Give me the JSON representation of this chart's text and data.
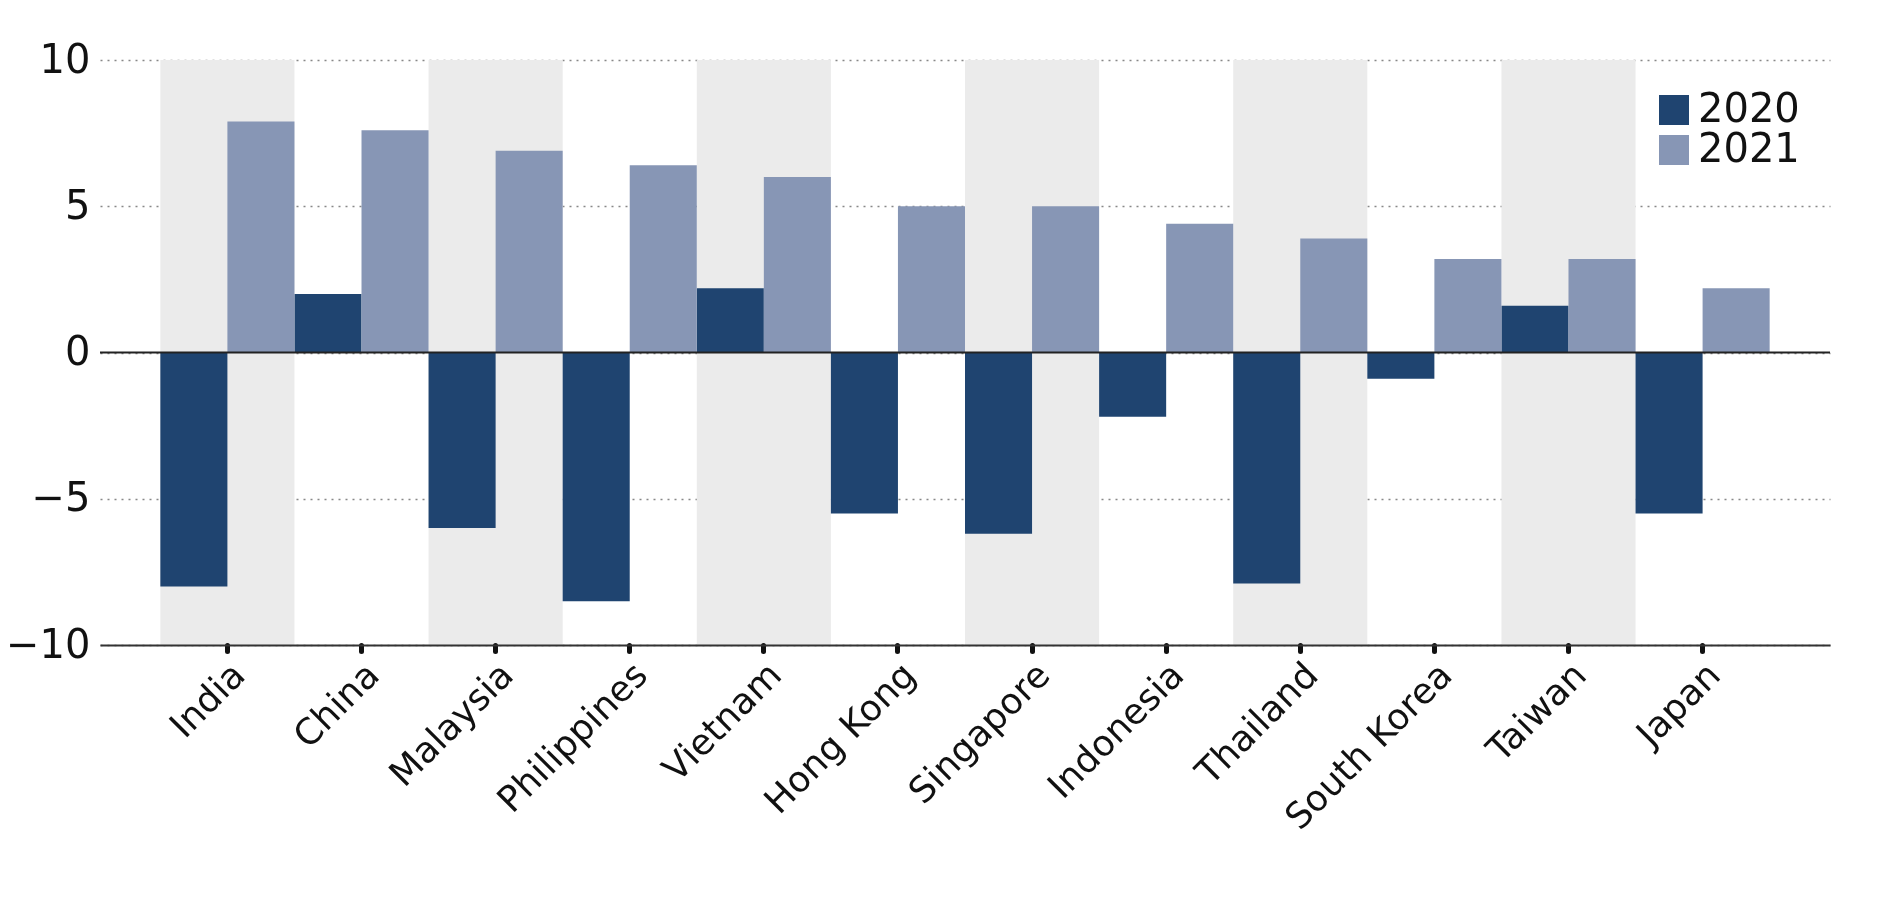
{
  "chart_data": {
    "type": "bar",
    "categories": [
      "India",
      "China",
      "Malaysia",
      "Philippines",
      "Vietnam",
      "Hong Kong",
      "Singapore",
      "Indonesia",
      "Thailand",
      "South Korea",
      "Taiwan",
      "Japan"
    ],
    "series": [
      {
        "name": "2020",
        "color": "#1f4470",
        "values": [
          -8.0,
          2.0,
          -6.0,
          -8.5,
          2.2,
          -5.5,
          -6.2,
          -2.2,
          -7.9,
          -0.9,
          1.6,
          -5.5
        ]
      },
      {
        "name": "2021",
        "color": "#8796b5",
        "values": [
          7.9,
          7.6,
          6.9,
          6.4,
          6.0,
          5.0,
          5.0,
          4.4,
          3.9,
          3.2,
          3.2,
          2.2
        ]
      }
    ],
    "ylim": [
      -10,
      10
    ],
    "yticks": [
      -10,
      -5,
      0,
      5,
      10
    ],
    "grid": "y",
    "legend": "top right",
    "ref_lines": [
      {
        "axis": "y",
        "value": 0,
        "color": "#222222"
      }
    ],
    "bands": [
      {
        "axis": "x",
        "from": "India",
        "to": "India",
        "color": "#ebebeb"
      },
      {
        "axis": "x",
        "from": "Malaysia",
        "to": "Malaysia",
        "color": "#ebebeb"
      },
      {
        "axis": "x",
        "from": "Vietnam",
        "to": "Vietnam",
        "color": "#ebebeb"
      },
      {
        "axis": "x",
        "from": "Singapore",
        "to": "Singapore",
        "color": "#ebebeb"
      },
      {
        "axis": "x",
        "from": "Thailand",
        "to": "Thailand",
        "color": "#ebebeb"
      },
      {
        "axis": "x",
        "from": "Taiwan",
        "to": "Taiwan",
        "color": "#ebebeb"
      }
    ]
  }
}
